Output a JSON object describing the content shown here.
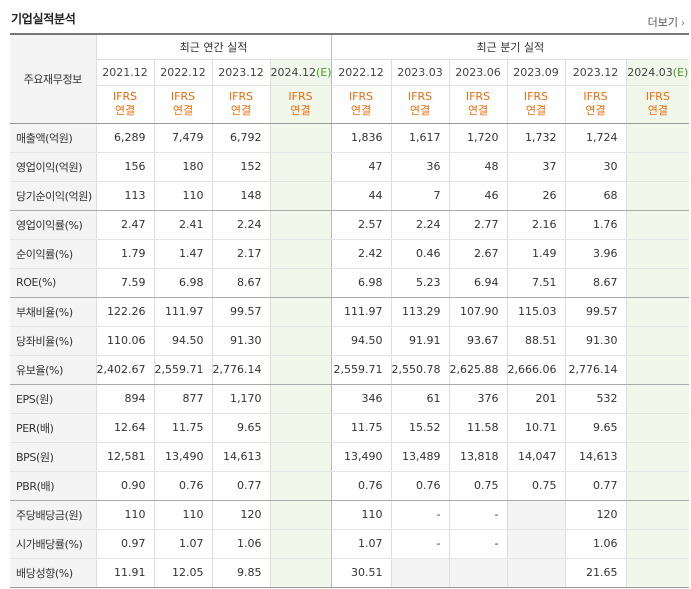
{
  "page": {
    "title": "기업실적분석",
    "more_label": "더보기",
    "more_chevron": "›"
  },
  "table": {
    "row_header_title": "주요재무정보",
    "group_annual": "최근 연간 실적",
    "group_quarterly": "최근 분기 실적",
    "annual_dates": [
      "2021.12",
      "2022.12",
      "2023.12",
      "2024.12"
    ],
    "quarterly_dates": [
      "2022.12",
      "2023.03",
      "2023.06",
      "2023.09",
      "2023.12",
      "2024.03"
    ],
    "estimate_mark": "(E)",
    "ifrs_line1": "IFRS",
    "ifrs_line2": "연결",
    "rows": [
      {
        "label": "매출액(억원)",
        "annual": [
          "6,289",
          "7,479",
          "6,792",
          ""
        ],
        "quarterly": [
          "1,836",
          "1,617",
          "1,720",
          "1,732",
          "1,724",
          ""
        ]
      },
      {
        "label": "영업이익(억원)",
        "annual": [
          "156",
          "180",
          "152",
          ""
        ],
        "quarterly": [
          "47",
          "36",
          "48",
          "37",
          "30",
          ""
        ]
      },
      {
        "label": "당기순이익(억원)",
        "annual": [
          "113",
          "110",
          "148",
          ""
        ],
        "quarterly": [
          "44",
          "7",
          "46",
          "26",
          "68",
          ""
        ]
      },
      {
        "label": "영업이익률(%)",
        "annual": [
          "2.47",
          "2.41",
          "2.24",
          ""
        ],
        "quarterly": [
          "2.57",
          "2.24",
          "2.77",
          "2.16",
          "1.76",
          ""
        ]
      },
      {
        "label": "순이익률(%)",
        "annual": [
          "1.79",
          "1.47",
          "2.17",
          ""
        ],
        "quarterly": [
          "2.42",
          "0.46",
          "2.67",
          "1.49",
          "3.96",
          ""
        ]
      },
      {
        "label": "ROE(%)",
        "annual": [
          "7.59",
          "6.98",
          "8.67",
          ""
        ],
        "quarterly": [
          "6.98",
          "5.23",
          "6.94",
          "7.51",
          "8.67",
          ""
        ]
      },
      {
        "label": "부채비율(%)",
        "annual": [
          "122.26",
          "111.97",
          "99.57",
          ""
        ],
        "quarterly": [
          "111.97",
          "113.29",
          "107.90",
          "115.03",
          "99.57",
          ""
        ]
      },
      {
        "label": "당좌비율(%)",
        "annual": [
          "110.06",
          "94.50",
          "91.30",
          ""
        ],
        "quarterly": [
          "94.50",
          "91.91",
          "93.67",
          "88.51",
          "91.30",
          ""
        ]
      },
      {
        "label": "유보율(%)",
        "annual": [
          "2,402.67",
          "2,559.71",
          "2,776.14",
          ""
        ],
        "quarterly": [
          "2,559.71",
          "2,550.78",
          "2,625.88",
          "2,666.06",
          "2,776.14",
          ""
        ]
      },
      {
        "label": "EPS(원)",
        "annual": [
          "894",
          "877",
          "1,170",
          ""
        ],
        "quarterly": [
          "346",
          "61",
          "376",
          "201",
          "532",
          ""
        ]
      },
      {
        "label": "PER(배)",
        "annual": [
          "12.64",
          "11.75",
          "9.65",
          ""
        ],
        "quarterly": [
          "11.75",
          "15.52",
          "11.58",
          "10.71",
          "9.65",
          ""
        ]
      },
      {
        "label": "BPS(원)",
        "annual": [
          "12,581",
          "13,490",
          "14,613",
          ""
        ],
        "quarterly": [
          "13,490",
          "13,489",
          "13,818",
          "14,047",
          "14,613",
          ""
        ]
      },
      {
        "label": "PBR(배)",
        "annual": [
          "0.90",
          "0.76",
          "0.77",
          ""
        ],
        "quarterly": [
          "0.76",
          "0.76",
          "0.75",
          "0.75",
          "0.77",
          ""
        ]
      },
      {
        "label": "주당배당금(원)",
        "annual": [
          "110",
          "110",
          "120",
          ""
        ],
        "quarterly": [
          "110",
          "-",
          "-",
          "",
          "120",
          ""
        ]
      },
      {
        "label": "시가배당률(%)",
        "annual": [
          "0.97",
          "1.07",
          "1.06",
          ""
        ],
        "quarterly": [
          "1.07",
          "-",
          "-",
          "",
          "1.06",
          ""
        ]
      },
      {
        "label": "배당성향(%)",
        "annual": [
          "11.91",
          "12.05",
          "9.85",
          ""
        ],
        "quarterly": [
          "30.51",
          "",
          "",
          "",
          "21.65",
          ""
        ]
      }
    ]
  },
  "colors": {
    "ifrs_orange": "#ec6b0c",
    "estimate_green": "#4a9a2a",
    "estimate_bg": "#f1f7ea",
    "label_bg": "#f4f4f4"
  }
}
